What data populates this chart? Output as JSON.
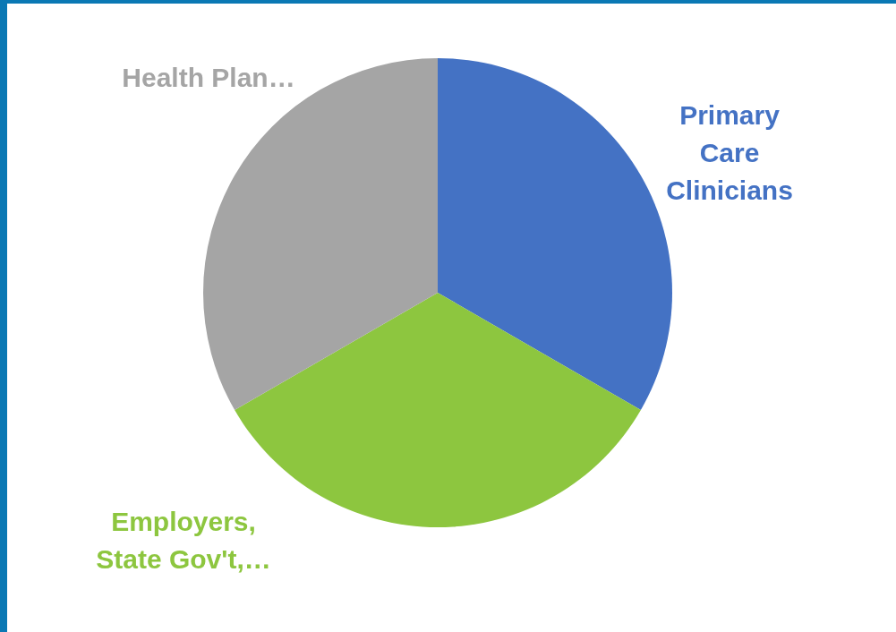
{
  "chart_data": {
    "type": "pie",
    "categories": [
      "Primary Care Clinicians",
      "Employers, State Gov't,…",
      "Health Plan…"
    ],
    "values": [
      33.33,
      33.33,
      33.34
    ],
    "colors": [
      "#4472c4",
      "#8dc63f",
      "#a5a5a5"
    ]
  }
}
